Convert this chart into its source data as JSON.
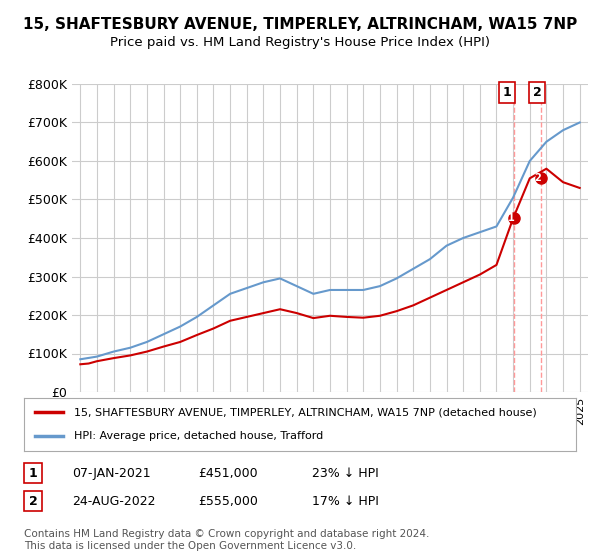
{
  "title": "15, SHAFTESBURY AVENUE, TIMPERLEY, ALTRINCHAM, WA15 7NP",
  "subtitle": "Price paid vs. HM Land Registry's House Price Index (HPI)",
  "ylabel": "",
  "ylim": [
    0,
    800000
  ],
  "yticks": [
    0,
    100000,
    200000,
    300000,
    400000,
    500000,
    600000,
    700000,
    800000
  ],
  "ytick_labels": [
    "£0",
    "£100K",
    "£200K",
    "£300K",
    "£400K",
    "£500K",
    "£600K",
    "£700K",
    "£800K"
  ],
  "hpi_color": "#6699cc",
  "price_color": "#cc0000",
  "marker1_color": "#cc0000",
  "marker2_color": "#cc0000",
  "vline_color": "#ff9999",
  "background_color": "#ffffff",
  "grid_color": "#cccccc",
  "legend_label_red": "15, SHAFTESBURY AVENUE, TIMPERLEY, ALTRINCHAM, WA15 7NP (detached house)",
  "legend_label_blue": "HPI: Average price, detached house, Trafford",
  "transaction1_label": "1",
  "transaction1_date": "07-JAN-2021",
  "transaction1_price": "£451,000",
  "transaction1_hpi": "23% ↓ HPI",
  "transaction2_label": "2",
  "transaction2_date": "24-AUG-2022",
  "transaction2_price": "£555,000",
  "transaction2_hpi": "17% ↓ HPI",
  "footer": "Contains HM Land Registry data © Crown copyright and database right 2024.\nThis data is licensed under the Open Government Licence v3.0.",
  "hpi_years": [
    1995,
    1996,
    1997,
    1998,
    1999,
    2000,
    2001,
    2002,
    2003,
    2004,
    2005,
    2006,
    2007,
    2008,
    2009,
    2010,
    2011,
    2012,
    2013,
    2014,
    2015,
    2016,
    2017,
    2018,
    2019,
    2020,
    2021,
    2022,
    2023,
    2024,
    2025
  ],
  "hpi_values": [
    85000,
    92000,
    105000,
    115000,
    130000,
    150000,
    170000,
    195000,
    225000,
    255000,
    270000,
    285000,
    295000,
    275000,
    255000,
    265000,
    265000,
    265000,
    275000,
    295000,
    320000,
    345000,
    380000,
    400000,
    415000,
    430000,
    505000,
    600000,
    650000,
    680000,
    700000
  ],
  "price_years": [
    1995.0,
    1995.5,
    1996.0,
    1997.0,
    1998.0,
    1999.0,
    2000.0,
    2001.0,
    2002.0,
    2003.0,
    2004.0,
    2005.0,
    2006.0,
    2007.0,
    2008.0,
    2009.0,
    2010.0,
    2011.0,
    2012.0,
    2013.0,
    2014.0,
    2015.0,
    2016.0,
    2017.0,
    2018.0,
    2019.0,
    2020.0,
    2021.0,
    2022.0,
    2023.0,
    2024.0,
    2025.0
  ],
  "price_values": [
    72000,
    74000,
    80000,
    88000,
    95000,
    105000,
    118000,
    130000,
    148000,
    165000,
    185000,
    195000,
    205000,
    215000,
    205000,
    192000,
    198000,
    195000,
    193000,
    198000,
    210000,
    225000,
    245000,
    265000,
    285000,
    305000,
    330000,
    451000,
    555000,
    580000,
    545000,
    530000
  ],
  "marker1_year": 2021.05,
  "marker1_value": 451000,
  "marker2_year": 2022.65,
  "marker2_value": 555000
}
